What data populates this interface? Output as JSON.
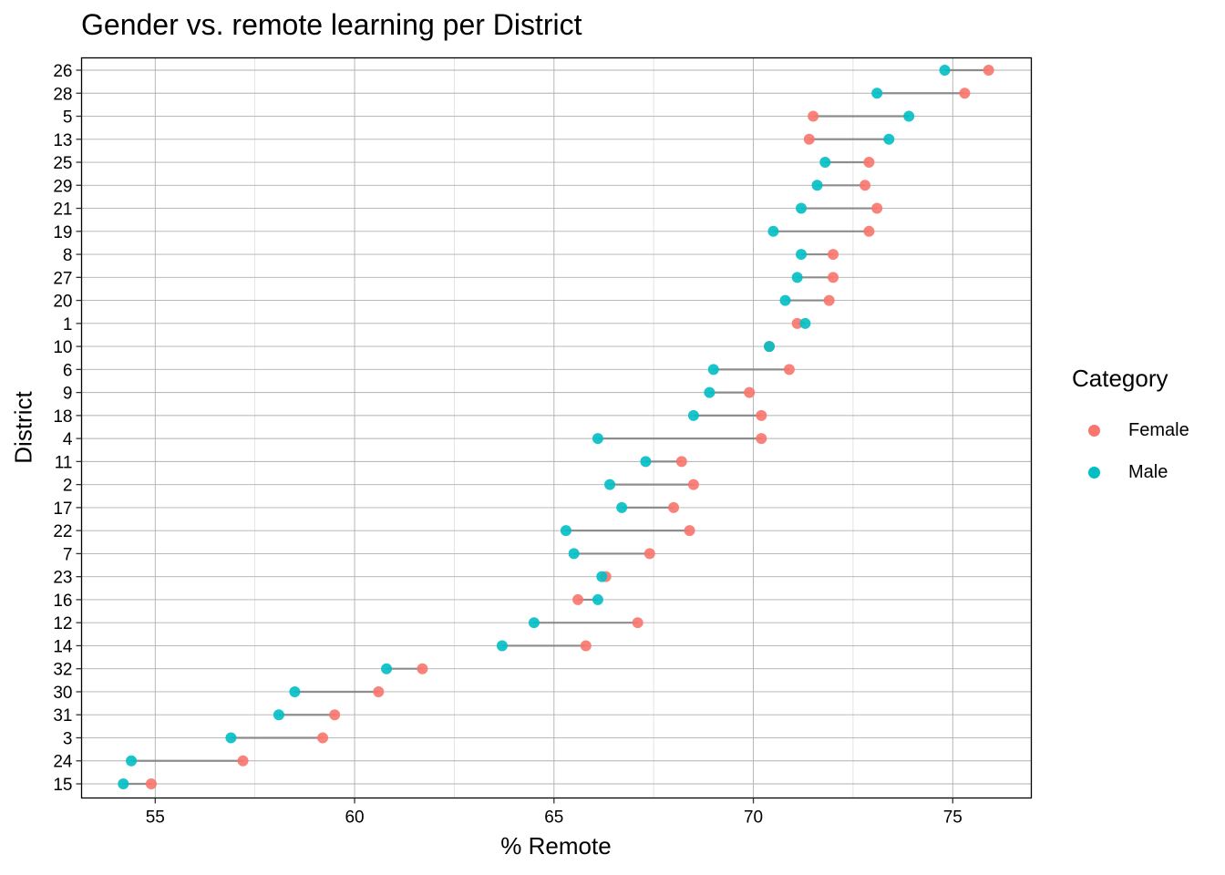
{
  "chart_data": {
    "type": "dumbbell",
    "title": "Gender vs. remote learning per District",
    "xlabel": "% Remote",
    "ylabel": "District",
    "xlim": [
      53.1,
      76.9
    ],
    "xticks": [
      55,
      60,
      65,
      70,
      75
    ],
    "grid": true,
    "legend": {
      "title": "Category",
      "position": "right",
      "entries": [
        "Female",
        "Male"
      ]
    },
    "colors": {
      "Female": "#F8766D",
      "Male": "#00BFC4",
      "segment": "#808080"
    },
    "categories": [
      "26",
      "28",
      "5",
      "13",
      "25",
      "29",
      "21",
      "19",
      "8",
      "27",
      "20",
      "1",
      "10",
      "6",
      "9",
      "18",
      "4",
      "11",
      "2",
      "17",
      "22",
      "7",
      "23",
      "16",
      "12",
      "14",
      "32",
      "30",
      "31",
      "3",
      "24",
      "15"
    ],
    "series": [
      {
        "name": "Female",
        "values": [
          75.9,
          75.3,
          71.5,
          71.4,
          72.9,
          72.8,
          73.1,
          72.9,
          72.0,
          72.0,
          71.9,
          71.1,
          70.4,
          70.9,
          69.9,
          70.2,
          70.2,
          68.2,
          68.5,
          68.0,
          68.4,
          67.4,
          66.3,
          65.6,
          67.1,
          65.8,
          61.7,
          60.6,
          59.5,
          59.2,
          57.2,
          54.9
        ]
      },
      {
        "name": "Male",
        "values": [
          74.8,
          73.1,
          73.9,
          73.4,
          71.8,
          71.6,
          71.2,
          70.5,
          71.2,
          71.1,
          70.8,
          71.3,
          70.4,
          69.0,
          68.9,
          68.5,
          66.1,
          67.3,
          66.4,
          66.7,
          65.3,
          65.5,
          66.2,
          66.1,
          64.5,
          63.7,
          60.8,
          58.5,
          58.1,
          56.9,
          54.4,
          54.2
        ]
      }
    ]
  }
}
